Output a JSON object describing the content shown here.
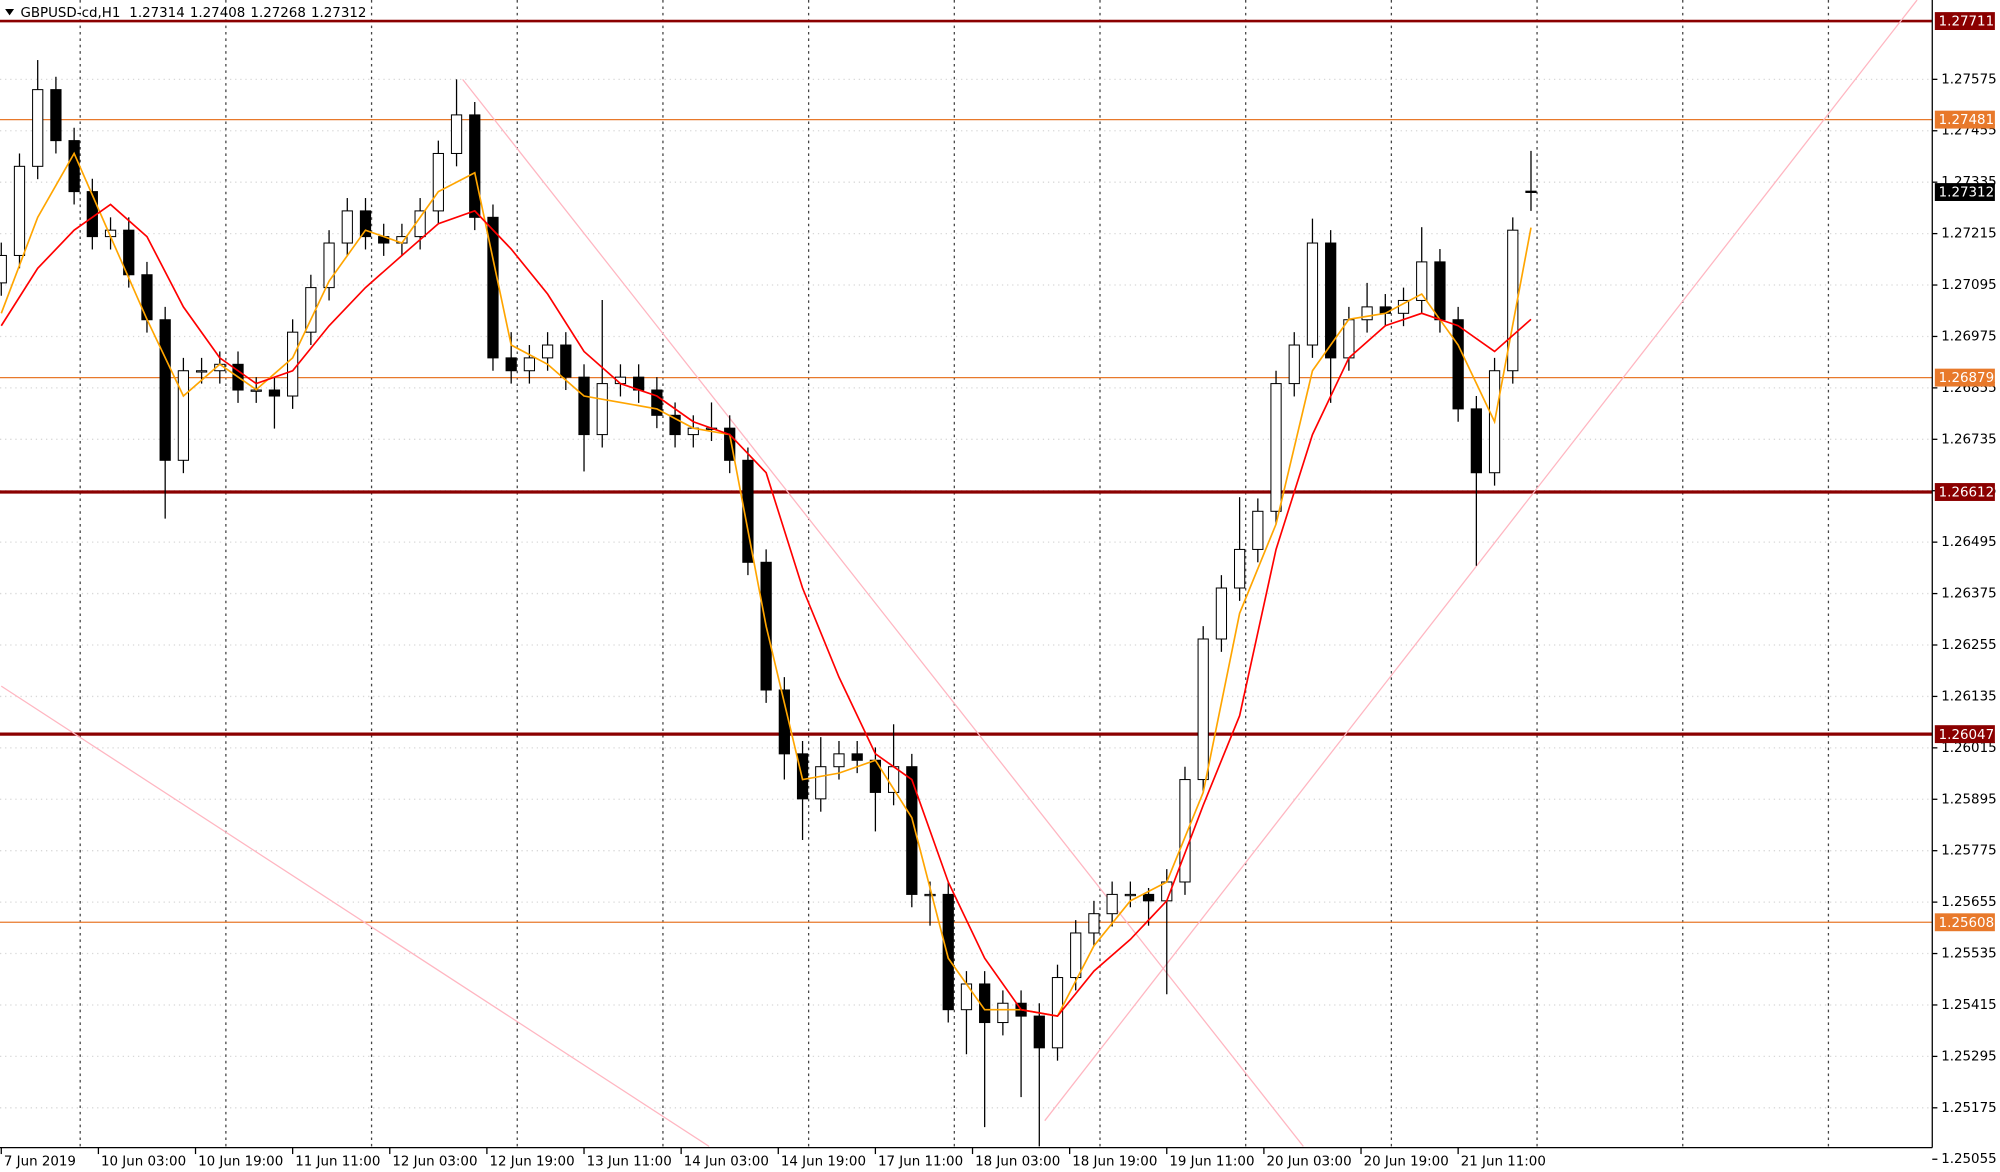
{
  "chart_data": {
    "type": "candlestick",
    "title": "GBPUSD-cd,H1",
    "header_values": [
      1.27314,
      1.27408,
      1.27268,
      1.27312
    ],
    "x": [
      0,
      3,
      6,
      9,
      12,
      15,
      18,
      21,
      24,
      27,
      30,
      33,
      36,
      39,
      42,
      45,
      48,
      51,
      54,
      57,
      60,
      63,
      66,
      69,
      72,
      75,
      78,
      81,
      84,
      87,
      90,
      93,
      96,
      99,
      102,
      105,
      108,
      111,
      114,
      117,
      120,
      123,
      126,
      129,
      132,
      135,
      138,
      141,
      144,
      147,
      150,
      153,
      156,
      159,
      162,
      165,
      168,
      171,
      174,
      177,
      180,
      183,
      186,
      189,
      192,
      195,
      198,
      201,
      204,
      207,
      210,
      213,
      216,
      219,
      222,
      225,
      228,
      231,
      234,
      237,
      240,
      243,
      246,
      249,
      252
    ],
    "ohlc": [
      [
        1.271,
        1.27194,
        1.2707,
        1.27164
      ],
      [
        1.27164,
        1.27402,
        1.27134,
        1.27372
      ],
      [
        1.27372,
        1.2762,
        1.27342,
        1.27551
      ],
      [
        1.27551,
        1.27581,
        1.27402,
        1.27432
      ],
      [
        1.27432,
        1.27462,
        1.27283,
        1.27313
      ],
      [
        1.27313,
        1.27343,
        1.27178,
        1.27208
      ],
      [
        1.27208,
        1.27253,
        1.27178,
        1.27223
      ],
      [
        1.27223,
        1.27253,
        1.27089,
        1.27119
      ],
      [
        1.27119,
        1.27149,
        1.26984,
        1.27014
      ],
      [
        1.27014,
        1.27044,
        1.2655,
        1.26686
      ],
      [
        1.26686,
        1.26925,
        1.26656,
        1.26895
      ],
      [
        1.26895,
        1.26925,
        1.26865,
        1.26895
      ],
      [
        1.26895,
        1.2694,
        1.26865,
        1.2691
      ],
      [
        1.2691,
        1.2694,
        1.2682,
        1.2685
      ],
      [
        1.2685,
        1.2688,
        1.2682,
        1.2685
      ],
      [
        1.2685,
        1.2688,
        1.2676,
        1.26836
      ],
      [
        1.26836,
        1.27015,
        1.26806,
        1.26985
      ],
      [
        1.26985,
        1.27119,
        1.26955,
        1.27089
      ],
      [
        1.27089,
        1.27223,
        1.27059,
        1.27193
      ],
      [
        1.27193,
        1.27298,
        1.27163,
        1.27268
      ],
      [
        1.27268,
        1.27298,
        1.27178,
        1.27208
      ],
      [
        1.27208,
        1.27238,
        1.27163,
        1.27193
      ],
      [
        1.27193,
        1.27238,
        1.27163,
        1.27208
      ],
      [
        1.27208,
        1.27298,
        1.27178,
        1.27268
      ],
      [
        1.27268,
        1.27432,
        1.27238,
        1.27402
      ],
      [
        1.27402,
        1.27575,
        1.27372,
        1.27492
      ],
      [
        1.27492,
        1.27522,
        1.27223,
        1.27253
      ],
      [
        1.27253,
        1.27283,
        1.26895,
        1.26925
      ],
      [
        1.26925,
        1.26985,
        1.26865,
        1.26895
      ],
      [
        1.26895,
        1.26955,
        1.26865,
        1.26925
      ],
      [
        1.26925,
        1.26985,
        1.26895,
        1.26955
      ],
      [
        1.26955,
        1.26985,
        1.2685,
        1.2688
      ],
      [
        1.2688,
        1.2691,
        1.2666,
        1.26746
      ],
      [
        1.26746,
        1.2706,
        1.26716,
        1.26865
      ],
      [
        1.26865,
        1.2691,
        1.26835,
        1.2688
      ],
      [
        1.2688,
        1.2691,
        1.2682,
        1.2685
      ],
      [
        1.2685,
        1.2688,
        1.26761,
        1.26791
      ],
      [
        1.26791,
        1.26821,
        1.26716,
        1.26746
      ],
      [
        1.26746,
        1.26791,
        1.26716,
        1.26761
      ],
      [
        1.26761,
        1.26821,
        1.26731,
        1.26761
      ],
      [
        1.26761,
        1.26791,
        1.26656,
        1.26686
      ],
      [
        1.26686,
        1.26716,
        1.26418,
        1.26448
      ],
      [
        1.26448,
        1.26478,
        1.2612,
        1.2615
      ],
      [
        1.2615,
        1.2618,
        1.25941,
        1.26001
      ],
      [
        1.26001,
        1.26031,
        1.258,
        1.25896
      ],
      [
        1.25896,
        1.2604,
        1.25866,
        1.25971
      ],
      [
        1.25971,
        1.26031,
        1.25941,
        1.26001
      ],
      [
        1.26001,
        1.26031,
        1.25956,
        1.25986
      ],
      [
        1.25986,
        1.26016,
        1.2582,
        1.25911
      ],
      [
        1.25911,
        1.2607,
        1.25881,
        1.25971
      ],
      [
        1.25971,
        1.26001,
        1.25643,
        1.25673
      ],
      [
        1.25673,
        1.25703,
        1.256,
        1.25673
      ],
      [
        1.25673,
        1.25703,
        1.25374,
        1.25404
      ],
      [
        1.25404,
        1.25494,
        1.253,
        1.25464
      ],
      [
        1.25464,
        1.25494,
        1.2513,
        1.25374
      ],
      [
        1.25374,
        1.25449,
        1.25344,
        1.25419
      ],
      [
        1.25419,
        1.25449,
        1.252,
        1.25389
      ],
      [
        1.25389,
        1.25419,
        1.25085,
        1.25315
      ],
      [
        1.25315,
        1.25509,
        1.25285,
        1.25479
      ],
      [
        1.25479,
        1.25613,
        1.25449,
        1.25583
      ],
      [
        1.25583,
        1.25658,
        1.25553,
        1.25628
      ],
      [
        1.25628,
        1.25703,
        1.25598,
        1.25673
      ],
      [
        1.25673,
        1.25703,
        1.25643,
        1.25673
      ],
      [
        1.25673,
        1.25688,
        1.256,
        1.25658
      ],
      [
        1.25658,
        1.25732,
        1.2544,
        1.25702
      ],
      [
        1.25702,
        1.25971,
        1.25672,
        1.25941
      ],
      [
        1.25941,
        1.26299,
        1.25911,
        1.26269
      ],
      [
        1.26269,
        1.26418,
        1.26239,
        1.26388
      ],
      [
        1.26388,
        1.266,
        1.26358,
        1.26478
      ],
      [
        1.26478,
        1.26597,
        1.26448,
        1.26567
      ],
      [
        1.26567,
        1.26895,
        1.26537,
        1.26865
      ],
      [
        1.26865,
        1.26985,
        1.26835,
        1.26955
      ],
      [
        1.26955,
        1.2725,
        1.26925,
        1.27193
      ],
      [
        1.27193,
        1.27223,
        1.2682,
        1.26925
      ],
      [
        1.26925,
        1.27044,
        1.26895,
        1.27014
      ],
      [
        1.27014,
        1.271,
        1.26984,
        1.27044
      ],
      [
        1.27044,
        1.27074,
        1.26999,
        1.27029
      ],
      [
        1.27029,
        1.27089,
        1.26999,
        1.27059
      ],
      [
        1.27059,
        1.2723,
        1.27029,
        1.27149
      ],
      [
        1.27149,
        1.27179,
        1.26984,
        1.27014
      ],
      [
        1.27014,
        1.27044,
        1.26776,
        1.26806
      ],
      [
        1.26806,
        1.26836,
        1.2644,
        1.26657
      ],
      [
        1.26657,
        1.26925,
        1.26627,
        1.26895
      ],
      [
        1.26895,
        1.27253,
        1.26865,
        1.27223
      ],
      [
        1.27314,
        1.27408,
        1.27268,
        1.27312
      ]
    ],
    "colors": {
      "up": "#ffffff",
      "down": "#000000",
      "outline": "#000000"
    },
    "ma": [
      {
        "color": "#ffa500",
        "x": [
          0,
          6,
          12,
          18,
          24,
          30,
          36,
          42,
          48,
          54,
          60,
          66,
          72,
          78,
          84,
          90,
          96,
          102,
          108,
          114,
          120,
          126,
          132,
          138,
          144,
          150,
          156,
          162,
          168,
          174,
          180,
          186,
          192,
          198,
          204,
          210,
          216,
          222,
          228,
          234,
          240,
          246,
          252
        ],
        "values": [
          1.27029,
          1.27253,
          1.27402,
          1.27208,
          1.27015,
          1.26836,
          1.2691,
          1.26851,
          1.26925,
          1.27104,
          1.27223,
          1.27193,
          1.27313,
          1.27357,
          1.26955,
          1.2691,
          1.26836,
          1.26821,
          1.26806,
          1.26761,
          1.26746,
          1.26299,
          1.25941,
          1.25956,
          1.25986,
          1.25852,
          1.25524,
          1.25404,
          1.25404,
          1.25389,
          1.25553,
          1.25658,
          1.25702,
          1.25911,
          1.26329,
          1.26537,
          1.26895,
          1.27015,
          1.27029,
          1.27074,
          1.26955,
          1.26776,
          1.27229
        ]
      },
      {
        "color": "#ff0000",
        "x": [
          0,
          6,
          12,
          18,
          24,
          30,
          36,
          42,
          48,
          54,
          60,
          66,
          72,
          78,
          84,
          90,
          96,
          102,
          108,
          114,
          120,
          126,
          132,
          138,
          144,
          150,
          156,
          162,
          168,
          174,
          180,
          186,
          192,
          198,
          204,
          210,
          216,
          222,
          228,
          234,
          240,
          246,
          252
        ],
        "values": [
          1.27,
          1.27134,
          1.27223,
          1.27283,
          1.27208,
          1.27044,
          1.26925,
          1.26865,
          1.26895,
          1.27,
          1.27089,
          1.27164,
          1.27238,
          1.27268,
          1.27179,
          1.27074,
          1.2694,
          1.26865,
          1.26836,
          1.26776,
          1.26746,
          1.26657,
          1.26388,
          1.2618,
          1.26001,
          1.25941,
          1.25702,
          1.25524,
          1.25404,
          1.25389,
          1.25494,
          1.25568,
          1.25658,
          1.25881,
          1.2609,
          1.26478,
          1.26746,
          1.26925,
          1.27,
          1.27029,
          1.27,
          1.2694,
          1.27015
        ]
      }
    ],
    "levels": [
      {
        "value": 1.27711,
        "color": "#8b0000",
        "width": 2
      },
      {
        "value": 1.27481,
        "color": "#e8792b",
        "width": 1
      },
      {
        "value": 1.26879,
        "color": "#e8792b",
        "width": 1
      },
      {
        "value": 1.26612,
        "color": "#8b0000",
        "width": 2.5
      },
      {
        "value": 1.26047,
        "color": "#8b0000",
        "width": 2.5
      },
      {
        "value": 1.25608,
        "color": "#e8792b",
        "width": 1
      }
    ],
    "last_price": 1.27312,
    "trendlines": [
      {
        "color": "#ffb6c1",
        "points": [
          [
            76,
            1.27575
          ],
          [
            214.5,
            1.25085
          ]
        ]
      },
      {
        "color": "#ffb6c1",
        "points": [
          [
            0,
            1.26159
          ],
          [
            116.6,
            1.25085
          ]
        ]
      },
      {
        "color": "#ffb6c1",
        "points": [
          [
            171.9,
            1.25145
          ],
          [
            315.6,
            1.2776
          ]
        ]
      }
    ],
    "xlim": [
      0,
      318
    ],
    "ylim": [
      1.25085,
      1.2776
    ],
    "yticks": [
      1.25055,
      1.25175,
      1.25295,
      1.25415,
      1.25535,
      1.25655,
      1.25775,
      1.25895,
      1.26015,
      1.26135,
      1.26255,
      1.26375,
      1.26495,
      1.26615,
      1.26735,
      1.26855,
      1.26975,
      1.27095,
      1.27215,
      1.27335,
      1.27455,
      1.27575
    ],
    "xticks": [
      {
        "value": 0,
        "label": "7 Jun 2019"
      },
      {
        "value": 16,
        "label": "10 Jun 03:00"
      },
      {
        "value": 32,
        "label": "10 Jun 19:00"
      },
      {
        "value": 48,
        "label": "11 Jun 11:00"
      },
      {
        "value": 64,
        "label": "12 Jun 03:00"
      },
      {
        "value": 80,
        "label": "12 Jun 19:00"
      },
      {
        "value": 96,
        "label": "13 Jun 11:00"
      },
      {
        "value": 112,
        "label": "14 Jun 03:00"
      },
      {
        "value": 128,
        "label": "14 Jun 19:00"
      },
      {
        "value": 144,
        "label": "17 Jun 11:00"
      },
      {
        "value": 160,
        "label": "18 Jun 03:00"
      },
      {
        "value": 176,
        "label": "18 Jun 19:00"
      },
      {
        "value": 192,
        "label": "19 Jun 11:00"
      },
      {
        "value": 208,
        "label": "20 Jun 03:00"
      },
      {
        "value": 224,
        "label": "20 Jun 19:00"
      },
      {
        "value": 240,
        "label": "21 Jun 11:00"
      }
    ],
    "day_separators": [
      13,
      37,
      61,
      85,
      109,
      133,
      157,
      181,
      205,
      229,
      253,
      277,
      301
    ],
    "grid": true
  }
}
